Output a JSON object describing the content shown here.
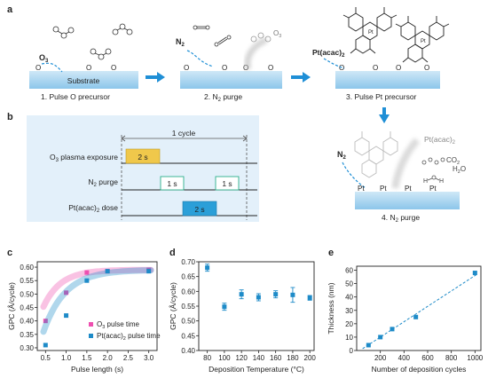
{
  "panels": {
    "a": {
      "label": "a",
      "substrate": "Substrate",
      "o3": "O",
      "o3_sub": "3",
      "o3_right": "O",
      "o3_right_sub": "3",
      "n2": "N",
      "n2_sub": "2",
      "pt_precursor": "Pt(acac)",
      "pt_precursor_sub": "2",
      "o_atom": "O",
      "steps": [
        {
          "num": "1.",
          "text": "Pulse O precursor"
        },
        {
          "num": "2.",
          "text": "N",
          "sub": "2",
          "tail": " purge"
        },
        {
          "num": "3.",
          "text": "Pulse Pt precursor"
        },
        {
          "num": "4.",
          "text": "N",
          "sub": "2",
          "tail": " purge"
        }
      ],
      "step4_n2": "N",
      "step4_n2_sub": "2",
      "ptacac_ghost": "Pt(acac)",
      "ptacac_ghost_sub": "2",
      "co2": "CO",
      "co2_sub": "2",
      "h2o": "H",
      "h2o_sub": "2",
      "h2o_tail": "O",
      "pt_atoms": [
        "Pt",
        "Pt",
        "Pt",
        "Pt"
      ]
    },
    "b": {
      "label": "b",
      "cycle": "1 cycle",
      "rows": [
        {
          "label": "O",
          "sub": "3",
          "tail": " plasma exposure",
          "pulses": [
            "2 s"
          ]
        },
        {
          "label": "N",
          "sub": "2",
          "tail": " purge",
          "pulses": [
            "1 s",
            "1 s"
          ]
        },
        {
          "label": "Pt(acac)",
          "sub": "2",
          "tail": " dose",
          "pulses": [
            "2 s"
          ]
        }
      ]
    },
    "c": {
      "label": "c"
    },
    "d": {
      "label": "d"
    },
    "e": {
      "label": "e"
    }
  },
  "colors": {
    "substrate": "#a8d4ee",
    "panel_b_bg": "#e3f0fa",
    "arrow": "#1f8fd6",
    "o3_pulse": "#f0c84b",
    "n2_pulse": "#ffffff",
    "pt_pulse": "#2b9fd8",
    "pink": "#ee4fb0",
    "blue": "#1e8bc8"
  },
  "chart_data": [
    {
      "id": "c",
      "type": "scatter",
      "xlabel": "Pulse length (s)",
      "ylabel": "GPC (Å/cycle)",
      "xlim": [
        0.3,
        3.2
      ],
      "ylim": [
        0.29,
        0.62
      ],
      "xticks": [
        "0.5",
        "1.0",
        "1.5",
        "2.0",
        "2.5",
        "3.0"
      ],
      "yticks": [
        "0.30",
        "0.35",
        "0.40",
        "0.45",
        "0.50",
        "0.55",
        "0.60"
      ],
      "legend_position": "bottom-right",
      "series": [
        {
          "name": "O3 pulse time",
          "legend": "O",
          "legend_sub": "3",
          "legend_tail": " pulse time",
          "color": "#ee4fb0",
          "x": [
            0.5,
            1.0,
            1.5,
            2.0,
            3.0
          ],
          "y": [
            0.4,
            0.505,
            0.58,
            0.585,
            0.59
          ]
        },
        {
          "name": "Pt(acac)2 pulse time",
          "legend": "Pt(acac)",
          "legend_sub": "2",
          "legend_tail": " pulse time",
          "color": "#1e8bc8",
          "x": [
            0.5,
            1.0,
            1.5,
            2.0,
            3.0
          ],
          "y": [
            0.31,
            0.42,
            0.55,
            0.585,
            0.585
          ]
        }
      ]
    },
    {
      "id": "d",
      "type": "scatter",
      "xlabel": "Deposition Temperature (°C)",
      "ylabel": "GPC (Å/cycle)",
      "xlim": [
        70,
        205
      ],
      "ylim": [
        0.4,
        0.7
      ],
      "xticks": [
        "80",
        "100",
        "120",
        "140",
        "160",
        "180",
        "200"
      ],
      "yticks": [
        "0.40",
        "0.45",
        "0.50",
        "0.55",
        "0.60",
        "0.65",
        "0.70"
      ],
      "series": [
        {
          "name": "GPC",
          "color": "#1e8bc8",
          "x": [
            80,
            100,
            120,
            140,
            160,
            180,
            200
          ],
          "y": [
            0.68,
            0.548,
            0.59,
            0.58,
            0.59,
            0.588,
            0.578
          ],
          "err": [
            0.012,
            0.012,
            0.015,
            0.012,
            0.012,
            0.025,
            0.008
          ]
        }
      ]
    },
    {
      "id": "e",
      "type": "scatter",
      "xlabel": "Number of deposition cycles",
      "ylabel": "Thickness (nm)",
      "xlim": [
        0,
        1050
      ],
      "ylim": [
        0,
        63
      ],
      "xticks": [
        "200",
        "400",
        "600",
        "800",
        "1000"
      ],
      "yticks": [
        "0",
        "10",
        "20",
        "30",
        "40",
        "50",
        "60"
      ],
      "series": [
        {
          "name": "Thickness",
          "color": "#1e8bc8",
          "x": [
            100,
            200,
            300,
            500,
            1000
          ],
          "y": [
            4,
            10,
            16,
            25,
            58
          ],
          "fit": true
        }
      ]
    }
  ]
}
